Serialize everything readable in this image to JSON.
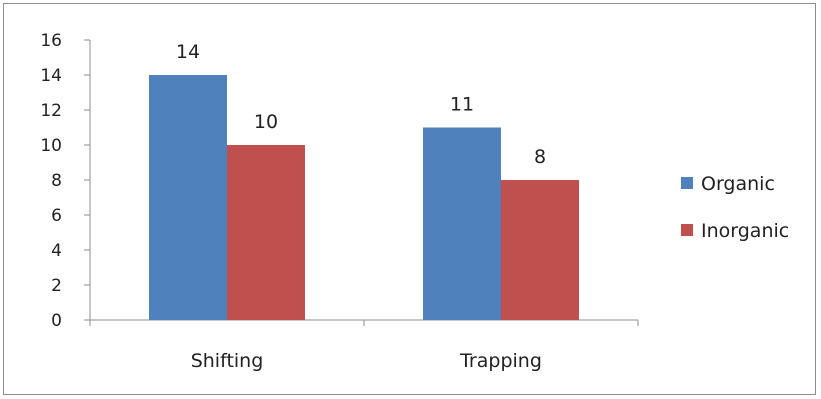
{
  "chart_data": {
    "type": "bar",
    "categories": [
      "Shifting",
      "Trapping"
    ],
    "series": [
      {
        "name": "Organic",
        "values": [
          14,
          11
        ],
        "color": "#4f81bd"
      },
      {
        "name": "Inorganic",
        "values": [
          10,
          8
        ],
        "color": "#c0504d"
      }
    ],
    "ylim": [
      0,
      16
    ],
    "yticks": [
      0,
      2,
      4,
      6,
      8,
      10,
      12,
      14,
      16
    ],
    "data_labels": true,
    "grid": false,
    "legend": "right",
    "title": "",
    "xlabel": "",
    "ylabel": ""
  }
}
